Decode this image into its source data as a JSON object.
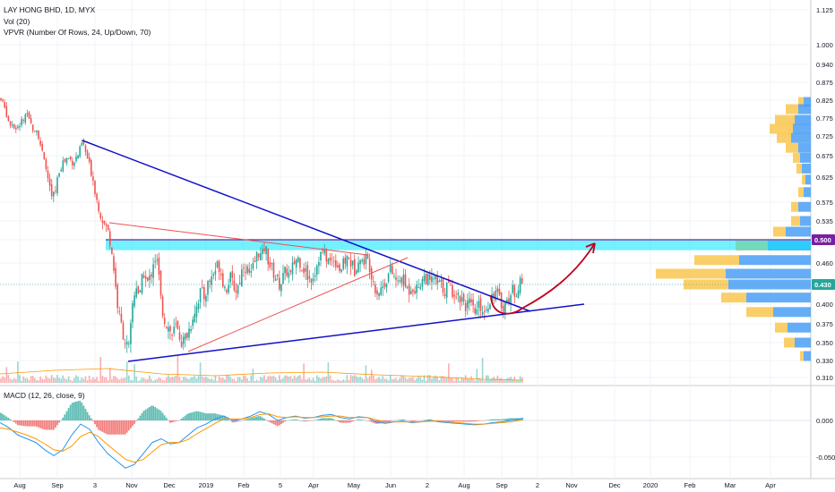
{
  "legend": {
    "symbol": "LAY HONG BHD, 1D, MYX",
    "vol": "Vol (20)",
    "vpvr": "VPVR (Number Of Rows, 24, Up/Down, 70)",
    "macd": "MACD (12, 26, close, 9)"
  },
  "colors": {
    "up": "#26a69a",
    "down": "#ef5350",
    "trend": "#1010c8",
    "wedge": "#f05050",
    "zone": "#00e5ff",
    "zone_border": "#7b1fa2",
    "arrow": "#c00020",
    "macd_line": "#2196f3",
    "signal_line": "#ff9800",
    "vpvr_up": "#4a9ff5",
    "vpvr_down": "#f9c74f"
  },
  "chart_data": [
    {
      "type": "candlestick",
      "title": "LAY HONG BHD, 1D, MYX",
      "ylim": [
        0.31,
        1.14
      ],
      "yticks": [
        "1.125",
        "1.000",
        "0.940",
        "0.875",
        "0.825",
        "0.775",
        "0.725",
        "0.675",
        "0.625",
        "0.575",
        "0.535",
        "0.500",
        "0.460",
        "0.430",
        "0.400",
        "0.375",
        "0.350",
        "0.330",
        "0.310"
      ],
      "ytick_values": [
        1.125,
        1.0,
        0.94,
        0.875,
        0.825,
        0.775,
        0.725,
        0.675,
        0.625,
        0.575,
        0.535,
        0.5,
        0.46,
        0.43,
        0.4,
        0.375,
        0.35,
        0.33,
        0.31
      ],
      "x_labels": [
        "Aug",
        "Sep",
        "3",
        "Nov",
        "Dec",
        "2019",
        "Feb",
        "5",
        "Apr",
        "May",
        "Jun",
        "2",
        "Aug",
        "Sep",
        "2",
        "Nov",
        "Dec",
        "2020",
        "Feb",
        "Mar",
        "Apr"
      ],
      "price_tags": [
        {
          "value": 0.5,
          "label": "0.500",
          "color": "#7b1fa2"
        },
        {
          "value": 0.43,
          "label": "0.430",
          "color": "#26a69a"
        }
      ],
      "close_path": [
        [
          0,
          0.83
        ],
        [
          6,
          0.8
        ],
        [
          10,
          0.76
        ],
        [
          16,
          0.74
        ],
        [
          22,
          0.76
        ],
        [
          30,
          0.78
        ],
        [
          36,
          0.75
        ],
        [
          42,
          0.74
        ],
        [
          48,
          0.67
        ],
        [
          54,
          0.62
        ],
        [
          58,
          0.58
        ],
        [
          62,
          0.6
        ],
        [
          66,
          0.64
        ],
        [
          70,
          0.66
        ],
        [
          76,
          0.67
        ],
        [
          82,
          0.66
        ],
        [
          88,
          0.68
        ],
        [
          92,
          0.71
        ],
        [
          96,
          0.68
        ],
        [
          100,
          0.65
        ],
        [
          104,
          0.62
        ],
        [
          108,
          0.58
        ],
        [
          112,
          0.55
        ],
        [
          116,
          0.53
        ],
        [
          120,
          0.52
        ],
        [
          124,
          0.49
        ],
        [
          128,
          0.44
        ],
        [
          132,
          0.39
        ],
        [
          136,
          0.37
        ],
        [
          140,
          0.35
        ],
        [
          144,
          0.34
        ],
        [
          148,
          0.4
        ],
        [
          152,
          0.43
        ],
        [
          156,
          0.41
        ],
        [
          160,
          0.45
        ],
        [
          164,
          0.43
        ],
        [
          168,
          0.44
        ],
        [
          172,
          0.47
        ],
        [
          176,
          0.46
        ],
        [
          180,
          0.4
        ],
        [
          184,
          0.38
        ],
        [
          188,
          0.37
        ],
        [
          192,
          0.36
        ],
        [
          196,
          0.37
        ],
        [
          200,
          0.36
        ],
        [
          204,
          0.35
        ],
        [
          208,
          0.36
        ],
        [
          212,
          0.37
        ],
        [
          216,
          0.39
        ],
        [
          220,
          0.4
        ],
        [
          224,
          0.42
        ],
        [
          228,
          0.41
        ],
        [
          232,
          0.43
        ],
        [
          236,
          0.44
        ],
        [
          240,
          0.45
        ],
        [
          244,
          0.46
        ],
        [
          248,
          0.44
        ],
        [
          252,
          0.42
        ],
        [
          256,
          0.44
        ],
        [
          260,
          0.43
        ],
        [
          264,
          0.42
        ],
        [
          268,
          0.44
        ],
        [
          272,
          0.46
        ],
        [
          276,
          0.45
        ],
        [
          280,
          0.44
        ],
        [
          284,
          0.46
        ],
        [
          288,
          0.48
        ],
        [
          292,
          0.47
        ],
        [
          296,
          0.49
        ],
        [
          300,
          0.46
        ],
        [
          304,
          0.45
        ],
        [
          308,
          0.44
        ],
        [
          312,
          0.43
        ],
        [
          316,
          0.44
        ],
        [
          320,
          0.45
        ],
        [
          324,
          0.44
        ],
        [
          328,
          0.46
        ],
        [
          332,
          0.47
        ],
        [
          336,
          0.46
        ],
        [
          340,
          0.45
        ],
        [
          344,
          0.44
        ],
        [
          348,
          0.44
        ],
        [
          352,
          0.45
        ],
        [
          356,
          0.47
        ],
        [
          360,
          0.48
        ],
        [
          364,
          0.47
        ],
        [
          368,
          0.46
        ],
        [
          372,
          0.47
        ],
        [
          376,
          0.46
        ],
        [
          380,
          0.45
        ],
        [
          384,
          0.46
        ],
        [
          388,
          0.47
        ],
        [
          392,
          0.46
        ],
        [
          396,
          0.45
        ],
        [
          400,
          0.47
        ],
        [
          404,
          0.46
        ],
        [
          408,
          0.47
        ],
        [
          412,
          0.46
        ],
        [
          416,
          0.44
        ],
        [
          420,
          0.42
        ],
        [
          424,
          0.42
        ],
        [
          428,
          0.43
        ],
        [
          432,
          0.44
        ],
        [
          436,
          0.45
        ],
        [
          440,
          0.44
        ],
        [
          444,
          0.43
        ],
        [
          448,
          0.44
        ],
        [
          452,
          0.43
        ],
        [
          456,
          0.42
        ],
        [
          460,
          0.43
        ],
        [
          464,
          0.42
        ],
        [
          468,
          0.43
        ],
        [
          472,
          0.44
        ],
        [
          476,
          0.44
        ],
        [
          480,
          0.43
        ],
        [
          484,
          0.44
        ],
        [
          488,
          0.43
        ],
        [
          492,
          0.43
        ],
        [
          496,
          0.42
        ],
        [
          500,
          0.43
        ],
        [
          504,
          0.42
        ],
        [
          508,
          0.42
        ],
        [
          512,
          0.41
        ],
        [
          516,
          0.41
        ],
        [
          520,
          0.4
        ],
        [
          524,
          0.4
        ],
        [
          528,
          0.39
        ],
        [
          532,
          0.39
        ],
        [
          536,
          0.4
        ],
        [
          540,
          0.39
        ],
        [
          544,
          0.4
        ],
        [
          548,
          0.41
        ],
        [
          552,
          0.42
        ],
        [
          556,
          0.41
        ],
        [
          560,
          0.4
        ],
        [
          564,
          0.4
        ],
        [
          568,
          0.41
        ],
        [
          572,
          0.42
        ],
        [
          576,
          0.42
        ],
        [
          580,
          0.43
        ],
        [
          584,
          0.43
        ]
      ]
    },
    {
      "type": "bar",
      "title": "Vol (20)",
      "note": "volume histogram below price"
    },
    {
      "type": "line",
      "title": "MACD (12, 26, close, 9)",
      "ylim": [
        -0.075,
        0.035
      ],
      "yticks": [
        "0.000",
        "-0.050"
      ],
      "ytick_values": [
        0.0,
        -0.05
      ],
      "macd_path": [
        [
          0,
          -0.003
        ],
        [
          10,
          -0.01
        ],
        [
          20,
          -0.02
        ],
        [
          30,
          -0.025
        ],
        [
          40,
          -0.03
        ],
        [
          50,
          -0.04
        ],
        [
          60,
          -0.048
        ],
        [
          70,
          -0.04
        ],
        [
          80,
          -0.02
        ],
        [
          90,
          -0.005
        ],
        [
          100,
          -0.012
        ],
        [
          110,
          -0.03
        ],
        [
          120,
          -0.045
        ],
        [
          130,
          -0.055
        ],
        [
          140,
          -0.065
        ],
        [
          150,
          -0.06
        ],
        [
          160,
          -0.045
        ],
        [
          170,
          -0.03
        ],
        [
          180,
          -0.025
        ],
        [
          190,
          -0.032
        ],
        [
          200,
          -0.03
        ],
        [
          210,
          -0.02
        ],
        [
          220,
          -0.01
        ],
        [
          230,
          -0.005
        ],
        [
          240,
          0.002
        ],
        [
          250,
          0.006
        ],
        [
          260,
          0.0
        ],
        [
          270,
          0.002
        ],
        [
          280,
          0.006
        ],
        [
          290,
          0.012
        ],
        [
          300,
          0.008
        ],
        [
          310,
          0.0
        ],
        [
          320,
          0.004
        ],
        [
          330,
          0.006
        ],
        [
          340,
          0.003
        ],
        [
          350,
          0.004
        ],
        [
          360,
          0.007
        ],
        [
          370,
          0.008
        ],
        [
          380,
          0.004
        ],
        [
          390,
          0.002
        ],
        [
          400,
          0.005
        ],
        [
          410,
          0.004
        ],
        [
          420,
          -0.002
        ],
        [
          430,
          -0.004
        ],
        [
          440,
          -0.002
        ],
        [
          450,
          -0.001
        ],
        [
          460,
          -0.003
        ],
        [
          470,
          -0.002
        ],
        [
          480,
          0.0
        ],
        [
          490,
          -0.002
        ],
        [
          500,
          -0.003
        ],
        [
          510,
          -0.004
        ],
        [
          520,
          -0.005
        ],
        [
          530,
          -0.006
        ],
        [
          540,
          -0.005
        ],
        [
          550,
          -0.003
        ],
        [
          560,
          -0.002
        ],
        [
          570,
          0.0
        ],
        [
          580,
          0.002
        ],
        [
          584,
          0.003
        ]
      ],
      "signal_path": [
        [
          0,
          -0.01
        ],
        [
          10,
          -0.012
        ],
        [
          20,
          -0.016
        ],
        [
          30,
          -0.02
        ],
        [
          40,
          -0.025
        ],
        [
          50,
          -0.032
        ],
        [
          60,
          -0.04
        ],
        [
          70,
          -0.042
        ],
        [
          80,
          -0.035
        ],
        [
          90,
          -0.022
        ],
        [
          100,
          -0.016
        ],
        [
          110,
          -0.022
        ],
        [
          120,
          -0.033
        ],
        [
          130,
          -0.043
        ],
        [
          140,
          -0.053
        ],
        [
          150,
          -0.057
        ],
        [
          160,
          -0.053
        ],
        [
          170,
          -0.043
        ],
        [
          180,
          -0.033
        ],
        [
          190,
          -0.03
        ],
        [
          200,
          -0.03
        ],
        [
          210,
          -0.026
        ],
        [
          220,
          -0.018
        ],
        [
          230,
          -0.011
        ],
        [
          240,
          -0.004
        ],
        [
          250,
          0.002
        ],
        [
          260,
          0.002
        ],
        [
          270,
          0.002
        ],
        [
          280,
          0.004
        ],
        [
          290,
          0.008
        ],
        [
          300,
          0.009
        ],
        [
          310,
          0.005
        ],
        [
          320,
          0.004
        ],
        [
          330,
          0.005
        ],
        [
          340,
          0.004
        ],
        [
          350,
          0.004
        ],
        [
          360,
          0.005
        ],
        [
          370,
          0.006
        ],
        [
          380,
          0.006
        ],
        [
          390,
          0.004
        ],
        [
          400,
          0.004
        ],
        [
          410,
          0.004
        ],
        [
          420,
          0.001
        ],
        [
          430,
          -0.002
        ],
        [
          440,
          -0.002
        ],
        [
          450,
          -0.002
        ],
        [
          460,
          -0.002
        ],
        [
          470,
          -0.002
        ],
        [
          480,
          -0.001
        ],
        [
          490,
          -0.001
        ],
        [
          500,
          -0.002
        ],
        [
          510,
          -0.003
        ],
        [
          520,
          -0.004
        ],
        [
          530,
          -0.005
        ],
        [
          540,
          -0.005
        ],
        [
          550,
          -0.004
        ],
        [
          560,
          -0.003
        ],
        [
          570,
          -0.002
        ],
        [
          580,
          0.0
        ],
        [
          584,
          0.001
        ]
      ]
    }
  ]
}
